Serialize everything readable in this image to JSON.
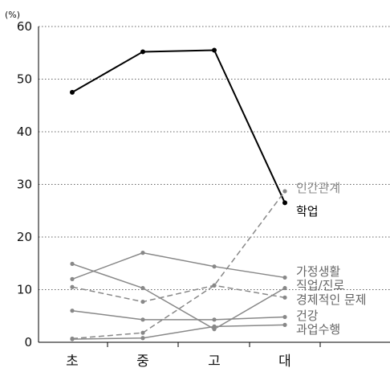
{
  "chart_data": {
    "type": "line",
    "title": "",
    "unit_label": "(%)",
    "xlabel": "",
    "ylabel": "",
    "categories": [
      "초",
      "중",
      "고",
      "대"
    ],
    "ylim": [
      0,
      60
    ],
    "yticks": [
      "0",
      "10",
      "20",
      "30",
      "40",
      "50",
      "60"
    ],
    "grid": true,
    "series": [
      {
        "name": "학업",
        "values": [
          47.5,
          55.2,
          55.5,
          26.5
        ],
        "color": "#000000",
        "dash": false,
        "label_color": "#000000"
      },
      {
        "name": "인간관계",
        "values": [
          0.7,
          1.8,
          10.8,
          28.7
        ],
        "color": "#888888",
        "dash": true,
        "label_color": "#888888"
      },
      {
        "name": "가정생활",
        "values": [
          12.0,
          17.0,
          14.4,
          12.3
        ],
        "color": "#888888",
        "dash": false,
        "label_color": "#666666"
      },
      {
        "name": "직업/진로",
        "values": [
          14.9,
          10.3,
          2.5,
          10.3
        ],
        "color": "#888888",
        "dash": false,
        "label_color": "#666666"
      },
      {
        "name": "경제적인 문제",
        "values": [
          10.5,
          7.7,
          10.8,
          8.5
        ],
        "color": "#888888",
        "dash": true,
        "label_color": "#666666"
      },
      {
        "name": "건강",
        "values": [
          6.0,
          4.3,
          4.3,
          4.8
        ],
        "color": "#888888",
        "dash": false,
        "label_color": "#666666"
      },
      {
        "name": "과업수행",
        "values": [
          0.6,
          0.8,
          3.0,
          3.3
        ],
        "color": "#888888",
        "dash": false,
        "label_color": "#666666"
      }
    ]
  }
}
